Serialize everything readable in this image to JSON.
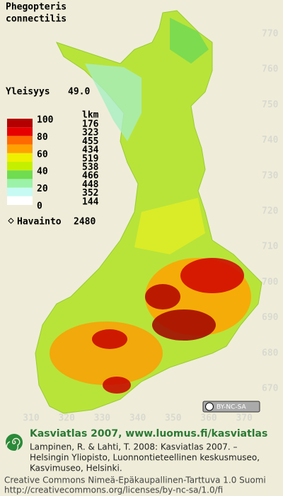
{
  "header": {
    "species": [
      "Phegopteris",
      "connectilis"
    ],
    "frequency_label": "Yleisyys",
    "frequency_value": "49.0"
  },
  "legend": {
    "scale_labels": [
      100,
      80,
      60,
      40,
      20,
      0
    ],
    "count_header": "lkm",
    "counts": [
      176,
      323,
      455,
      434,
      519,
      538,
      466,
      448,
      352,
      144
    ],
    "colors": [
      "#b40000",
      "#e60000",
      "#ff6a00",
      "#ffa200",
      "#eef000",
      "#c4f000",
      "#70dc50",
      "#9cf2a8",
      "#c8faf4",
      "#ffffff"
    ],
    "observations_label": "Havainto",
    "observations": 2480
  },
  "map": {
    "xlim": [
      300,
      378
    ],
    "ylim": [
      665,
      775
    ],
    "xticks": [
      310,
      320,
      330,
      340,
      350,
      360,
      370
    ],
    "yticks": [
      770,
      760,
      750,
      740,
      730,
      720,
      710,
      700,
      690,
      680,
      670
    ]
  },
  "badge": "BY-NC-SA",
  "footer": {
    "title": "Kasviatlas 2007, www.luomus.fi/kasviatlas",
    "citation": [
      "Lampinen, R. & Lahti, T. 2008: Kasviatlas 2007. –",
      "Helsingin Yliopisto, Luonnontieteellinen keskusmuseo,",
      "Kasvimuseo, Helsinki."
    ],
    "license": [
      "Creative Commons Nimeä-Epäkaupallinen-Tarttuva 1.0 Suomi",
      "http://creativecommons.org/licenses/by-nc-sa/1.0/fi"
    ]
  }
}
